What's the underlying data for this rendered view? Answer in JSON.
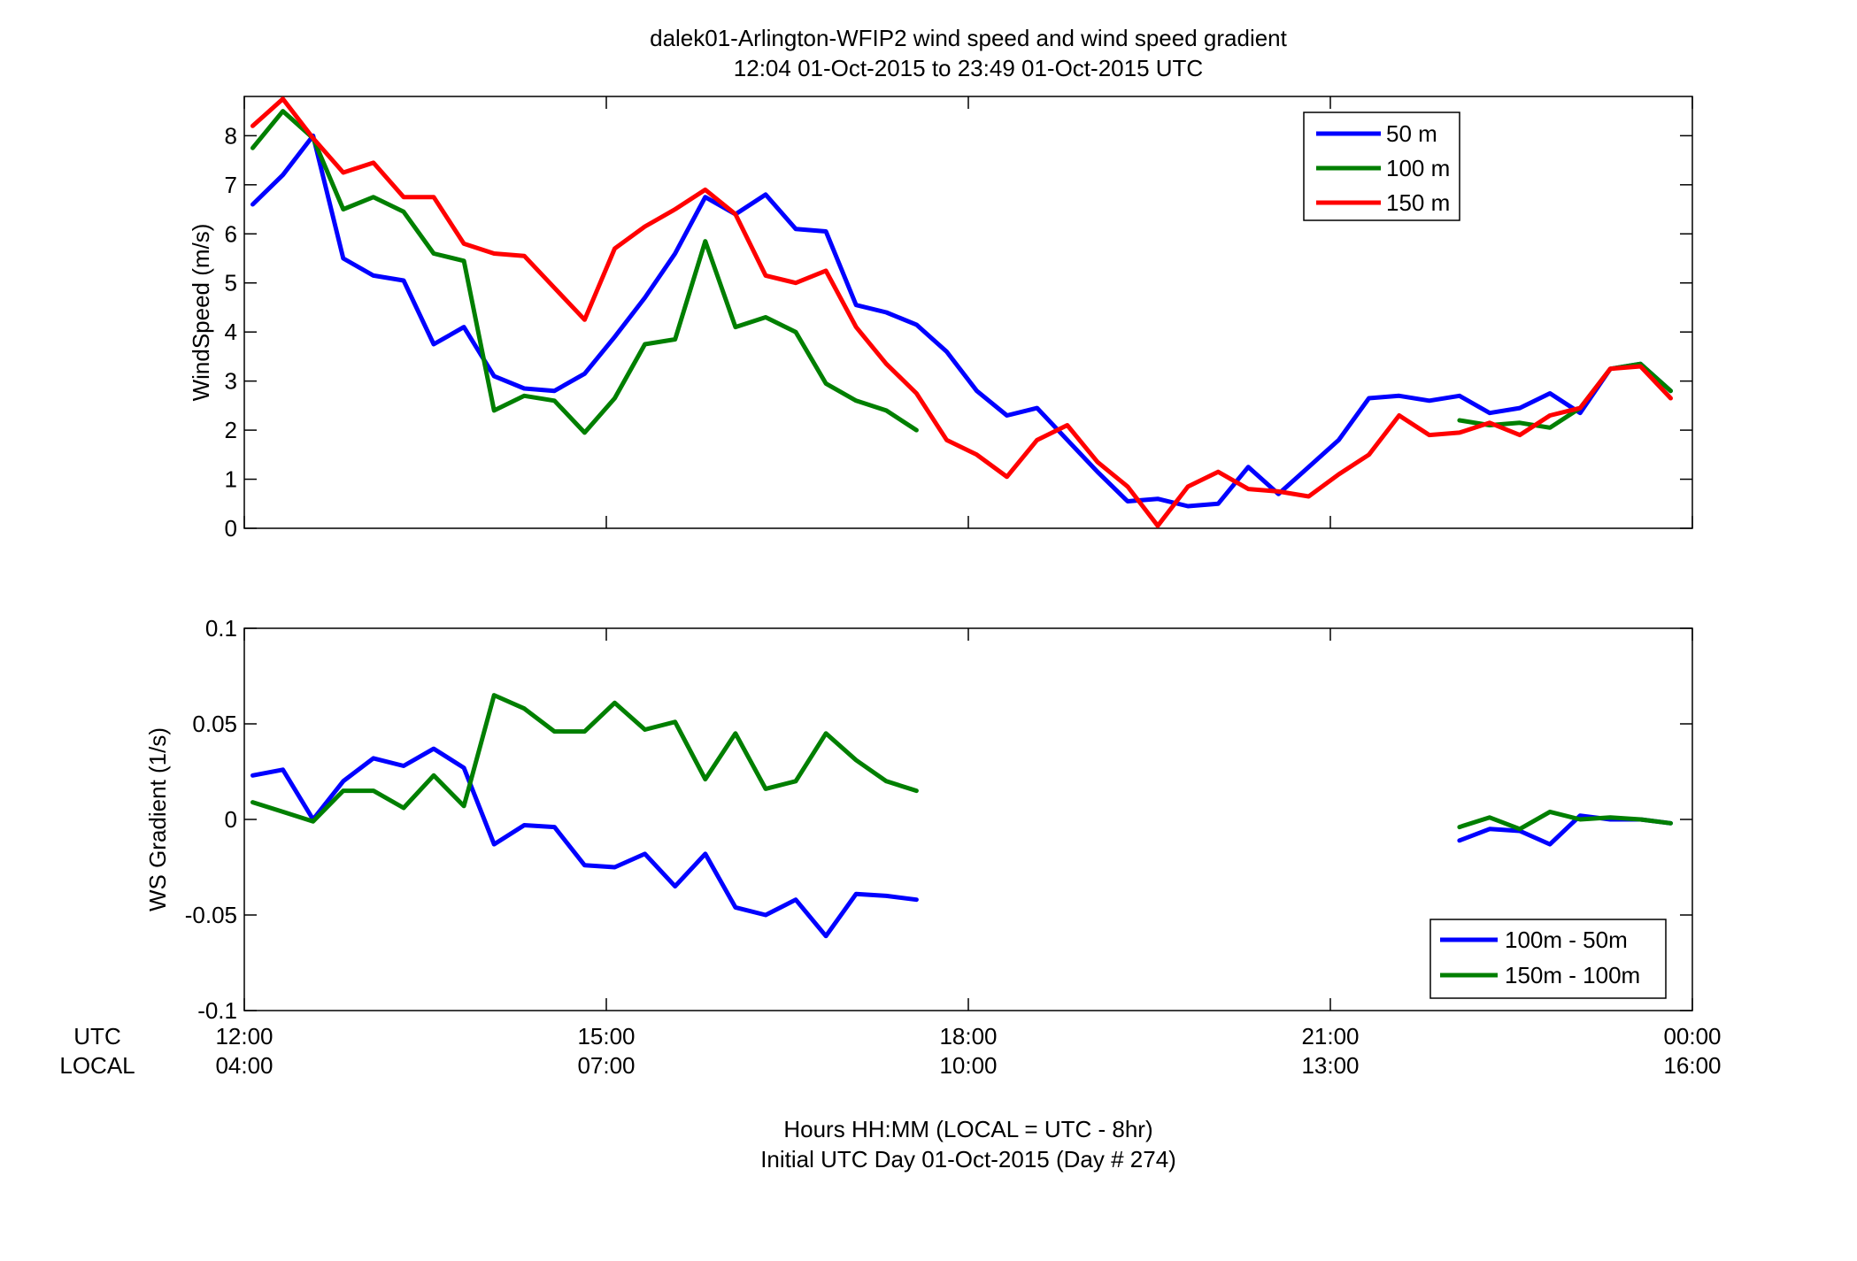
{
  "title_line1": "dalek01-Arlington-WFIP2  wind speed and wind speed gradient",
  "title_line2": "12:04 01-Oct-2015 to 23:49 01-Oct-2015  UTC",
  "xaxis": {
    "row_label_utc": "UTC",
    "row_label_local": "LOCAL",
    "ticks_utc": [
      "12:00",
      "15:00",
      "18:00",
      "21:00",
      "00:00"
    ],
    "ticks_local": [
      "04:00",
      "07:00",
      "10:00",
      "13:00",
      "16:00"
    ],
    "label_line1": "Hours HH:MM  (LOCAL = UTC - 8hr)",
    "label_line2": "Initial UTC Day 01-Oct-2015 (Day # 274)"
  },
  "colors": {
    "blue": "#0000ff",
    "green": "#007f00",
    "red": "#ff0000"
  },
  "chart_data": [
    {
      "type": "line",
      "ylabel": "WindSpeed (m/s)",
      "xlim": [
        12,
        24
      ],
      "ylim": [
        0,
        8.8
      ],
      "yticks": [
        0,
        1,
        2,
        3,
        4,
        5,
        6,
        7,
        8
      ],
      "ytick_labels": [
        "0",
        "1",
        "2",
        "3",
        "4",
        "5",
        "6",
        "7",
        "8"
      ],
      "legend_position": "top-right",
      "x": [
        12.07,
        12.32,
        12.57,
        12.82,
        13.07,
        13.32,
        13.57,
        13.82,
        14.07,
        14.32,
        14.57,
        14.82,
        15.07,
        15.32,
        15.57,
        15.82,
        16.07,
        16.32,
        16.57,
        16.82,
        17.07,
        17.32,
        17.57,
        17.82,
        18.07,
        18.32,
        18.57,
        18.82,
        19.07,
        19.32,
        19.57,
        19.82,
        20.07,
        20.32,
        20.57,
        20.82,
        21.07,
        21.32,
        21.57,
        21.82,
        22.07,
        22.32,
        22.57,
        22.82,
        23.07,
        23.32,
        23.57,
        23.82
      ],
      "series": [
        {
          "name": "50 m",
          "color": "#0000ff",
          "values": [
            6.6,
            7.2,
            8.0,
            5.5,
            5.15,
            5.05,
            3.75,
            4.1,
            3.1,
            2.85,
            2.8,
            3.15,
            3.9,
            4.7,
            5.6,
            6.75,
            6.4,
            6.8,
            6.1,
            6.05,
            4.55,
            4.4,
            4.15,
            3.6,
            2.8,
            2.3,
            2.45,
            1.8,
            1.15,
            0.55,
            0.6,
            0.45,
            0.5,
            1.25,
            0.7,
            1.25,
            1.8,
            2.65,
            2.7,
            2.6,
            2.7,
            2.35,
            2.45,
            2.75,
            2.35,
            3.25,
            3.35,
            2.8
          ]
        },
        {
          "name": "100 m",
          "color": "#007f00",
          "values": [
            7.75,
            8.5,
            7.95,
            6.5,
            6.75,
            6.45,
            5.6,
            5.45,
            2.4,
            2.7,
            2.6,
            1.95,
            2.65,
            3.75,
            3.85,
            5.85,
            4.1,
            4.3,
            4.0,
            2.95,
            2.6,
            2.4,
            2.0,
            null,
            null,
            null,
            null,
            null,
            null,
            null,
            null,
            null,
            null,
            null,
            null,
            null,
            null,
            null,
            null,
            null,
            2.2,
            2.1,
            2.15,
            2.05,
            2.45,
            3.25,
            3.35,
            2.8
          ]
        },
        {
          "name": "150 m",
          "color": "#ff0000",
          "values": [
            8.2,
            8.75,
            7.95,
            7.25,
            7.45,
            6.75,
            6.75,
            5.8,
            5.6,
            5.55,
            4.9,
            4.25,
            5.7,
            6.15,
            6.5,
            6.9,
            6.4,
            5.15,
            5.0,
            5.25,
            4.1,
            3.35,
            2.75,
            1.8,
            1.5,
            1.05,
            1.8,
            2.1,
            1.35,
            0.85,
            0.05,
            0.85,
            1.15,
            0.8,
            0.75,
            0.65,
            1.1,
            1.5,
            2.3,
            1.9,
            1.95,
            2.15,
            1.9,
            2.3,
            2.45,
            3.25,
            3.3,
            2.65
          ]
        }
      ]
    },
    {
      "type": "line",
      "ylabel": "WS Gradient (1/s)",
      "xlim": [
        12,
        24
      ],
      "ylim": [
        -0.1,
        0.1
      ],
      "yticks": [
        -0.1,
        -0.05,
        0,
        0.05,
        0.1
      ],
      "ytick_labels": [
        "-0.1",
        "-0.05",
        "0",
        "0.05",
        "0.1"
      ],
      "legend_position": "bottom-right",
      "x": [
        12.07,
        12.32,
        12.57,
        12.82,
        13.07,
        13.32,
        13.57,
        13.82,
        14.07,
        14.32,
        14.57,
        14.82,
        15.07,
        15.32,
        15.57,
        15.82,
        16.07,
        16.32,
        16.57,
        16.82,
        17.07,
        17.32,
        17.57,
        17.82,
        18.07,
        18.32,
        18.57,
        18.82,
        19.07,
        19.32,
        19.57,
        19.82,
        20.07,
        20.32,
        20.57,
        20.82,
        21.07,
        21.32,
        21.57,
        21.82,
        22.07,
        22.32,
        22.57,
        22.82,
        23.07,
        23.32,
        23.57,
        23.82
      ],
      "series": [
        {
          "name": "100m - 50m",
          "color": "#0000ff",
          "values": [
            0.023,
            0.026,
            0.0,
            0.02,
            0.032,
            0.028,
            0.037,
            0.027,
            -0.013,
            -0.003,
            -0.004,
            -0.024,
            -0.025,
            -0.018,
            -0.035,
            -0.018,
            -0.046,
            -0.05,
            -0.042,
            -0.061,
            -0.039,
            -0.04,
            -0.042,
            null,
            null,
            null,
            null,
            null,
            null,
            null,
            null,
            null,
            null,
            null,
            null,
            null,
            null,
            null,
            null,
            null,
            -0.011,
            -0.005,
            -0.006,
            -0.013,
            0.002,
            0.0,
            0.0,
            -0.002
          ]
        },
        {
          "name": "150m - 100m",
          "color": "#007f00",
          "values": [
            0.009,
            0.004,
            -0.001,
            0.015,
            0.015,
            0.006,
            0.023,
            0.007,
            0.065,
            0.058,
            0.046,
            0.046,
            0.061,
            0.047,
            0.051,
            0.021,
            0.045,
            0.016,
            0.02,
            0.045,
            0.031,
            0.02,
            0.015,
            null,
            null,
            null,
            null,
            null,
            null,
            null,
            null,
            null,
            null,
            null,
            null,
            null,
            null,
            null,
            null,
            null,
            -0.004,
            0.001,
            -0.005,
            0.004,
            0.0,
            0.001,
            0.0,
            -0.002
          ]
        }
      ]
    }
  ]
}
